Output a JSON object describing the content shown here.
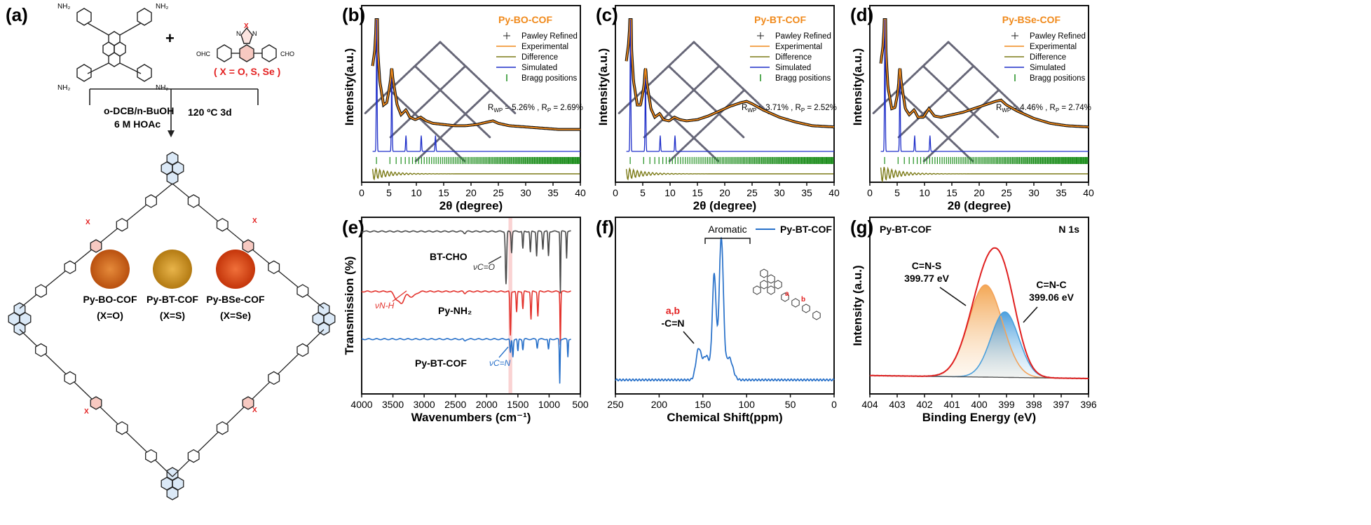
{
  "panels": {
    "a": {
      "tag": "(a)",
      "plus": "+",
      "x_def": "( X = O, S, Se )",
      "cond_left_1": "o-DCB/n-BuOH",
      "cond_left_2": "6 M HOAc",
      "cond_right": "120 ºC  3d",
      "amine_label": "NH₂",
      "cho_label": "OHC",
      "cho_label_r": "CHO",
      "samples": [
        {
          "name": "Py-BO-COF",
          "x": "(X=O)",
          "color": "#d0651c"
        },
        {
          "name": "Py-BT-COF",
          "x": "(X=S)",
          "color": "#d69a26"
        },
        {
          "name": "Py-BSe-COF",
          "x": "(X=Se)",
          "color": "#e04b14"
        }
      ],
      "atom_labels": [
        "X",
        "N",
        "N"
      ]
    },
    "b": {
      "tag": "(b)",
      "title": "Py-BO-COF",
      "rwp": "5.26%",
      "rp": "2.69%"
    },
    "c": {
      "tag": "(c)",
      "title": "Py-BT-COF",
      "rwp": "3.71%",
      "rp": "2.52%"
    },
    "d": {
      "tag": "(d)",
      "title": "Py-BSe-COF",
      "rwp": "4.46%",
      "rp": "2.74%"
    },
    "e": {
      "tag": "(e)",
      "labels": {
        "bt": "BT-CHO",
        "py": "Py-NH₂",
        "cof": "Py-BT-COF",
        "vco": "νC=O",
        "vnh": "νN-H",
        "vcn": "νC=N"
      }
    },
    "f": {
      "tag": "(f)",
      "legend": "Py-BT-COF",
      "aromatic": "Aromatic",
      "ab": "a,b",
      "cn": "-C=N",
      "mark_a": "a",
      "mark_b": "b"
    },
    "g": {
      "tag": "(g)",
      "sample": "Py-BT-COF",
      "region": "N 1s",
      "peak1": "C=N-S",
      "peak1_ev": "399.77 eV",
      "peak2": "C=N-C",
      "peak2_ev": "399.06 eV"
    }
  },
  "xrd_legend": [
    "Pawley Refined",
    "Experimental",
    "Difference",
    "Simulated",
    "Bragg positions"
  ],
  "xrd_axis": {
    "xlabel": "2θ (degree)",
    "ylabel": "Intensity(a.u.)"
  },
  "colors": {
    "orange": "#f08a1c",
    "olive": "#7b7a16",
    "blue": "#1f2fc9",
    "green": "#1f8f1f",
    "ir_blue": "#2770c9",
    "ir_red": "#e3332d",
    "ir_gray": "#4a4a4a",
    "xps_red": "#e02020",
    "xps_orange": "#f3a35a",
    "xps_blue": "#4ba0dc"
  },
  "chart_data": [
    {
      "type": "line",
      "panel": "b",
      "title": "Py-BO-COF",
      "xlabel": "2θ (degree)",
      "ylabel": "Intensity(a.u.)",
      "xlim": [
        0,
        40
      ],
      "xticks": [
        0,
        5,
        10,
        15,
        20,
        25,
        30,
        35,
        40
      ],
      "series": [
        {
          "name": "Pawley Refined / Experimental",
          "x": [
            2,
            2.4,
            2.7,
            2.9,
            3.3,
            4,
            4.6,
            5.1,
            5.5,
            5.9,
            6.5,
            7.2,
            8.1,
            8.8,
            9.8,
            10.8,
            11.8,
            13,
            15,
            17,
            19,
            21,
            23,
            24,
            25,
            27,
            30,
            33,
            36,
            40
          ],
          "y": [
            0.62,
            0.75,
            1.0,
            0.78,
            0.5,
            0.3,
            0.32,
            0.45,
            0.58,
            0.46,
            0.3,
            0.22,
            0.26,
            0.2,
            0.18,
            0.2,
            0.17,
            0.15,
            0.14,
            0.13,
            0.13,
            0.14,
            0.16,
            0.17,
            0.15,
            0.13,
            0.12,
            0.11,
            0.1,
            0.1
          ]
        },
        {
          "name": "Simulated",
          "peaks": [
            2.75,
            5.5,
            8.1,
            10.9,
            13.5
          ]
        },
        {
          "name": "Difference",
          "amp": 0.03
        }
      ]
    },
    {
      "type": "line",
      "panel": "c",
      "title": "Py-BT-COF",
      "xlabel": "2θ (degree)",
      "ylabel": "Intensity(a.u.)",
      "xlim": [
        0,
        40
      ],
      "xticks": [
        0,
        5,
        10,
        15,
        20,
        25,
        30,
        35,
        40
      ],
      "series": [
        {
          "name": "Pawley Refined / Experimental",
          "x": [
            2,
            2.4,
            2.7,
            2.9,
            3.3,
            4,
            4.6,
            5.1,
            5.5,
            5.9,
            6.5,
            7.2,
            8.1,
            8.8,
            9.8,
            10.8,
            11.8,
            13,
            15,
            17,
            19,
            21,
            23,
            24,
            25,
            27,
            30,
            33,
            36,
            40
          ],
          "y": [
            0.66,
            0.8,
            1.0,
            0.8,
            0.5,
            0.3,
            0.3,
            0.42,
            0.56,
            0.44,
            0.27,
            0.2,
            0.23,
            0.18,
            0.17,
            0.2,
            0.18,
            0.17,
            0.18,
            0.21,
            0.25,
            0.29,
            0.32,
            0.33,
            0.31,
            0.26,
            0.2,
            0.16,
            0.13,
            0.12
          ]
        },
        {
          "name": "Simulated",
          "peaks": [
            2.75,
            5.5,
            8.2,
            10.9
          ]
        },
        {
          "name": "Difference",
          "amp": 0.03
        }
      ]
    },
    {
      "type": "line",
      "panel": "d",
      "title": "Py-BSe-COF",
      "xlabel": "2θ (degree)",
      "ylabel": "Intensity(a.u.)",
      "xlim": [
        0,
        40
      ],
      "xticks": [
        0,
        5,
        10,
        15,
        20,
        25,
        30,
        35,
        40
      ],
      "series": [
        {
          "name": "Pawley Refined / Experimental",
          "x": [
            2,
            2.4,
            2.7,
            2.9,
            3.3,
            4,
            4.6,
            5.1,
            5.5,
            5.9,
            6.5,
            7.2,
            8.1,
            8.8,
            9.8,
            10.8,
            11.8,
            13,
            15,
            17,
            19,
            21,
            23,
            24,
            25,
            27,
            30,
            33,
            36,
            40
          ],
          "y": [
            0.64,
            0.78,
            1.0,
            0.78,
            0.45,
            0.27,
            0.28,
            0.4,
            0.58,
            0.44,
            0.27,
            0.22,
            0.26,
            0.2,
            0.2,
            0.27,
            0.21,
            0.2,
            0.22,
            0.24,
            0.27,
            0.3,
            0.33,
            0.34,
            0.3,
            0.25,
            0.19,
            0.15,
            0.13,
            0.12
          ]
        },
        {
          "name": "Simulated",
          "peaks": [
            2.75,
            5.5,
            8.2,
            11.0
          ]
        },
        {
          "name": "Difference",
          "amp": 0.04
        }
      ]
    },
    {
      "type": "line",
      "panel": "e",
      "xlabel": "Wavenumbers (cm⁻¹)",
      "ylabel": "Transmission (%)",
      "xlim": [
        4000,
        500
      ],
      "xticks": [
        4000,
        3500,
        3000,
        2500,
        2000,
        1500,
        1000,
        500
      ],
      "highlight": 1620,
      "series": [
        {
          "name": "BT-CHO",
          "color": "#4a4a4a",
          "base": 0.92,
          "dips": [
            [
              1690,
              0.3,
              10
            ],
            [
              1600,
              0.12,
              8
            ],
            [
              1420,
              0.1,
              8
            ],
            [
              1300,
              0.12,
              8
            ],
            [
              1200,
              0.14,
              8
            ],
            [
              1100,
              0.1,
              8
            ],
            [
              1010,
              0.14,
              8
            ],
            [
              820,
              0.35,
              6
            ],
            [
              720,
              0.15,
              6
            ]
          ]
        },
        {
          "name": "Py-NH₂",
          "color": "#e3332d",
          "base": 0.58,
          "dips": [
            [
              3440,
              0.04,
              40
            ],
            [
              3360,
              0.06,
              40
            ],
            [
              3200,
              0.03,
              60
            ],
            [
              1620,
              0.25,
              8
            ],
            [
              1520,
              0.12,
              8
            ],
            [
              1420,
              0.1,
              8
            ],
            [
              1290,
              0.16,
              8
            ],
            [
              1180,
              0.14,
              8
            ],
            [
              820,
              0.3,
              6
            ]
          ]
        },
        {
          "name": "Py-BT-COF",
          "color": "#2770c9",
          "base": 0.31,
          "dips": [
            [
              1620,
              0.08,
              8
            ],
            [
              1580,
              0.1,
              8
            ],
            [
              1500,
              0.07,
              8
            ],
            [
              1420,
              0.06,
              8
            ],
            [
              1190,
              0.05,
              8
            ],
            [
              1010,
              0.06,
              8
            ],
            [
              830,
              0.25,
              6
            ],
            [
              700,
              0.1,
              6
            ]
          ]
        }
      ]
    },
    {
      "type": "line",
      "panel": "f",
      "xlabel": "Chemical Shift(ppm)",
      "legend": "Py-BT-COF",
      "xlim": [
        250,
        0
      ],
      "xticks": [
        250,
        200,
        150,
        100,
        50,
        0
      ],
      "series": [
        {
          "name": "Py-BT-COF",
          "baseline": 0.12,
          "peaks": [
            [
              155,
              0.2,
              3
            ],
            [
              146,
              0.16,
              4
            ],
            [
              137,
              0.7,
              2.2
            ],
            [
              129,
              0.95,
              2.4
            ],
            [
              120,
              0.15,
              4
            ]
          ]
        }
      ]
    },
    {
      "type": "area",
      "panel": "g",
      "xlabel": "Binding Energy (eV)",
      "ylabel": "Intensity (a.u.)",
      "xlim": [
        404,
        396
      ],
      "xticks": [
        404,
        403,
        402,
        401,
        400,
        399,
        398,
        397,
        396
      ],
      "series": [
        {
          "name": "C=N-S",
          "center": 399.77,
          "fwhm": 1.45,
          "height": 0.62,
          "color": "#f3a35a"
        },
        {
          "name": "C=N-C",
          "center": 399.06,
          "fwhm": 1.2,
          "height": 0.44,
          "color": "#4ba0dc"
        },
        {
          "name": "Envelope",
          "color": "#e02020"
        },
        {
          "name": "Background",
          "color": "#555555"
        }
      ]
    }
  ]
}
